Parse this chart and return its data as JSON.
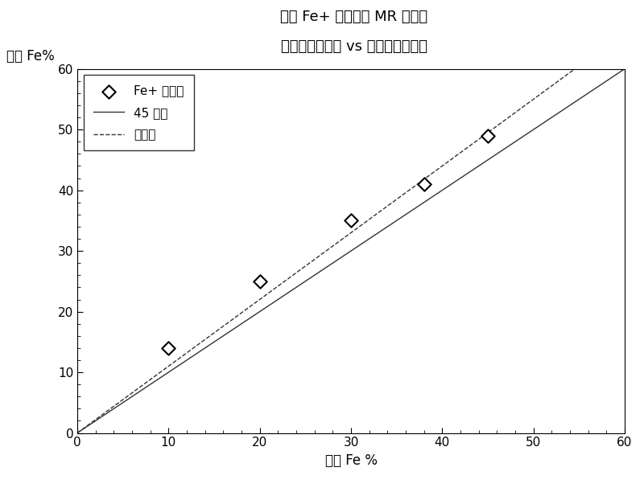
{
  "title_line1": "具有 Fe+ 玻璃珠的 MR 流体的",
  "title_line2": "等效铁体积分数 vs 实际铁体积分数",
  "ylabel_text": "等效 Fe%",
  "xlabel_text": "实际 Fe %",
  "scatter_x": [
    10,
    20,
    30,
    38,
    45
  ],
  "scatter_y": [
    14,
    25,
    35,
    41,
    49
  ],
  "line45_x": [
    0,
    60
  ],
  "line45_y": [
    0,
    60
  ],
  "trend_slope": 1.1,
  "trend_intercept": 0,
  "xlim": [
    0,
    60
  ],
  "ylim": [
    0,
    60
  ],
  "xticks": [
    0,
    10,
    20,
    30,
    40,
    50,
    60
  ],
  "yticks": [
    0,
    10,
    20,
    30,
    40,
    50,
    60
  ],
  "legend_scatter": "Fe+ 玻璃珠",
  "legend_line45": "45 度线",
  "legend_trend": "趋势线",
  "bg_color": "#ffffff",
  "title_fontsize": 13,
  "axis_label_fontsize": 12,
  "tick_fontsize": 11,
  "legend_fontsize": 11
}
